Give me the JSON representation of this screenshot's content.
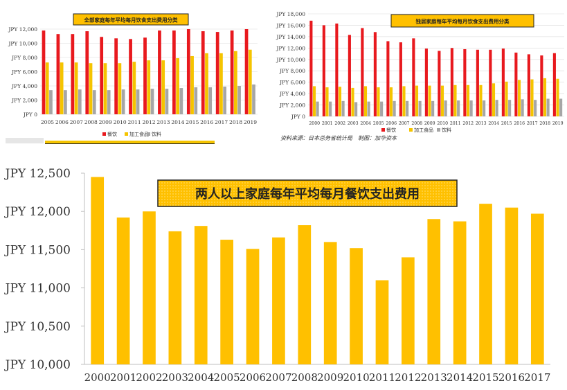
{
  "colors": {
    "series_dining": "#e8191e",
    "series_processed": "#f5c400",
    "series_beverage": "#a6a6a6",
    "bar_main": "#ffc000",
    "title_box": "#ffc000",
    "grid": "#d9d9d9"
  },
  "source_note": "资料来源：日本总务省统计局　制图：加华资本",
  "chart_data": [
    {
      "id": "top-left",
      "type": "bar",
      "title": "全部家庭每年平均每月饮食支出费用分类",
      "categories": [
        "2005",
        "2006",
        "2007",
        "2008",
        "2009",
        "2010",
        "2011",
        "2012",
        "2013",
        "2014",
        "2015",
        "2016",
        "2017",
        "2018",
        "2019"
      ],
      "series": [
        {
          "name": "餐饮",
          "color": "#e8191e",
          "values": [
            11800,
            11300,
            11300,
            11700,
            10900,
            10700,
            10600,
            10800,
            11800,
            11800,
            12000,
            11700,
            11600,
            11800,
            12000
          ]
        },
        {
          "name": "加工食品",
          "color": "#f5c400",
          "values": [
            7300,
            7300,
            7300,
            7200,
            7200,
            7200,
            7400,
            7600,
            7600,
            7900,
            8200,
            8600,
            8600,
            8900,
            9100
          ]
        },
        {
          "name": "饮料",
          "color": "#a6a6a6",
          "values": [
            3400,
            3400,
            3500,
            3400,
            3400,
            3500,
            3500,
            3600,
            3600,
            3700,
            3800,
            3800,
            3900,
            4000,
            4200
          ]
        }
      ],
      "ylim": [
        0,
        12000
      ],
      "yticks": [
        0,
        2000,
        4000,
        6000,
        8000,
        10000,
        12000
      ],
      "ytick_labels": [
        "JPY 0",
        "JPY 2,000",
        "JPY 4,000",
        "JPY 6,000",
        "JPY 8,000",
        "JPY 10,000",
        "JPY 12,000"
      ],
      "legend_position": "bottom"
    },
    {
      "id": "top-right",
      "type": "bar",
      "title": "独居家庭每年平均每月饮食支出费用分类",
      "categories": [
        "2000",
        "2001",
        "2002",
        "2003",
        "2004",
        "2005",
        "2006",
        "2007",
        "2008",
        "2009",
        "2010",
        "2011",
        "2012",
        "2013",
        "2014",
        "2015",
        "2016",
        "2017",
        "2018",
        "2019"
      ],
      "series": [
        {
          "name": "餐饮",
          "color": "#e8191e",
          "values": [
            16800,
            16000,
            16300,
            14300,
            15500,
            14800,
            13200,
            13000,
            13700,
            11900,
            11500,
            12000,
            11800,
            11700,
            11700,
            11900,
            11200,
            10900,
            10700,
            11100
          ]
        },
        {
          "name": "加工食品",
          "color": "#f5c400",
          "values": [
            5300,
            5100,
            5200,
            5000,
            5300,
            5100,
            5100,
            5300,
            5400,
            5400,
            5400,
            5500,
            5500,
            5500,
            5800,
            6100,
            6400,
            6500,
            6700,
            6600
          ]
        },
        {
          "name": "饮料",
          "color": "#a6a6a6",
          "values": [
            2600,
            2600,
            2700,
            2500,
            2600,
            2600,
            2700,
            2700,
            2700,
            2700,
            2800,
            2800,
            2800,
            2800,
            2900,
            2900,
            3000,
            2900,
            3100,
            3100
          ]
        }
      ],
      "ylim": [
        0,
        18000
      ],
      "yticks": [
        0,
        2000,
        4000,
        6000,
        8000,
        10000,
        12000,
        14000,
        16000,
        18000
      ],
      "ytick_labels": [
        "JPY 0",
        "JPY 2,000",
        "JPY 4,000",
        "JPY 6,000",
        "JPY 8,000",
        "JPY 10,000",
        "JPY 12,000",
        "JPY 14,000",
        "JPY 16,000",
        "JPY 18,000"
      ],
      "legend_position": "bottom"
    },
    {
      "id": "bottom",
      "type": "bar",
      "title": "两人以上家庭每年平均每月餐饮支出费用",
      "categories": [
        "2000",
        "2001",
        "2002",
        "2003",
        "2004",
        "2005",
        "2006",
        "2007",
        "2008",
        "2009",
        "2010",
        "2011",
        "2012",
        "2013",
        "2014",
        "2015",
        "2016",
        "2017"
      ],
      "values": [
        12450,
        11920,
        12000,
        11740,
        11810,
        11630,
        11510,
        11660,
        11820,
        11600,
        11520,
        11100,
        11400,
        11900,
        11870,
        12100,
        12050,
        11970
      ],
      "ylim": [
        10000,
        12500
      ],
      "yticks": [
        10000,
        10500,
        11000,
        11500,
        12000,
        12500
      ],
      "ytick_labels": [
        "JPY 10,000",
        "JPY 10,500",
        "JPY 11,000",
        "JPY 11,500",
        "JPY 12,000",
        "JPY 12,500"
      ],
      "color": "#ffc000"
    }
  ]
}
